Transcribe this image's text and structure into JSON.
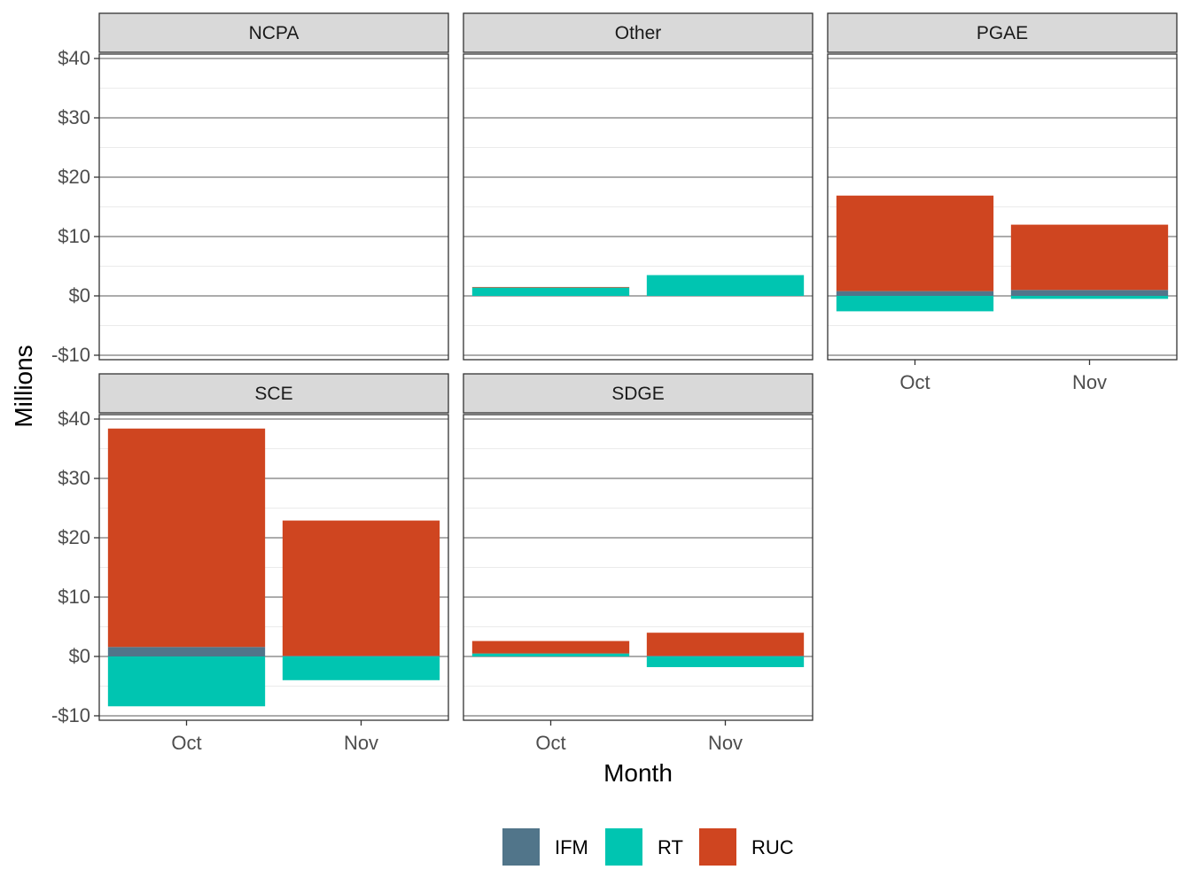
{
  "chart_data": {
    "type": "bar",
    "stacked": true,
    "facet_layout": "3 columns, 2 rows",
    "xlabel": "Month",
    "ylabel": "Millions",
    "categories": [
      "Oct",
      "Nov"
    ],
    "ylim": [
      -10,
      40
    ],
    "yticks": [
      -10,
      0,
      10,
      20,
      30,
      40
    ],
    "ytick_labels": [
      "-$10",
      "$0",
      "$10",
      "$20",
      "$30",
      "$40"
    ],
    "grid": true,
    "legend": {
      "position": "bottom",
      "entries": [
        {
          "name": "IFM",
          "color": "#51758A"
        },
        {
          "name": "RT",
          "color": "#00C5B1"
        },
        {
          "name": "RUC",
          "color": "#CF4520"
        }
      ]
    },
    "facets": [
      {
        "name": "NCPA",
        "series": [
          {
            "name": "IFM",
            "values": [
              0,
              0
            ]
          },
          {
            "name": "RT",
            "values": [
              0,
              0
            ]
          },
          {
            "name": "RUC",
            "values": [
              0,
              0
            ]
          }
        ]
      },
      {
        "name": "Other",
        "series": [
          {
            "name": "IFM",
            "values": [
              0,
              0
            ]
          },
          {
            "name": "RT",
            "values": [
              1.4,
              3.5
            ]
          },
          {
            "name": "RUC",
            "values": [
              0.1,
              0
            ]
          }
        ]
      },
      {
        "name": "PGAE",
        "series": [
          {
            "name": "IFM",
            "values": [
              0.8,
              1.0
            ]
          },
          {
            "name": "RT",
            "values": [
              -2.6,
              -0.5
            ]
          },
          {
            "name": "RUC",
            "values": [
              16.1,
              11.0
            ]
          }
        ]
      },
      {
        "name": "SCE",
        "series": [
          {
            "name": "IFM",
            "values": [
              1.6,
              0.1
            ]
          },
          {
            "name": "RT",
            "values": [
              -8.4,
              -4.0
            ]
          },
          {
            "name": "RUC",
            "values": [
              36.8,
              22.8
            ]
          }
        ]
      },
      {
        "name": "SDGE",
        "series": [
          {
            "name": "IFM",
            "values": [
              0,
              0.1
            ]
          },
          {
            "name": "RT",
            "values": [
              0.5,
              -1.8
            ]
          },
          {
            "name": "RUC",
            "values": [
              2.1,
              3.9
            ]
          }
        ]
      }
    ]
  }
}
